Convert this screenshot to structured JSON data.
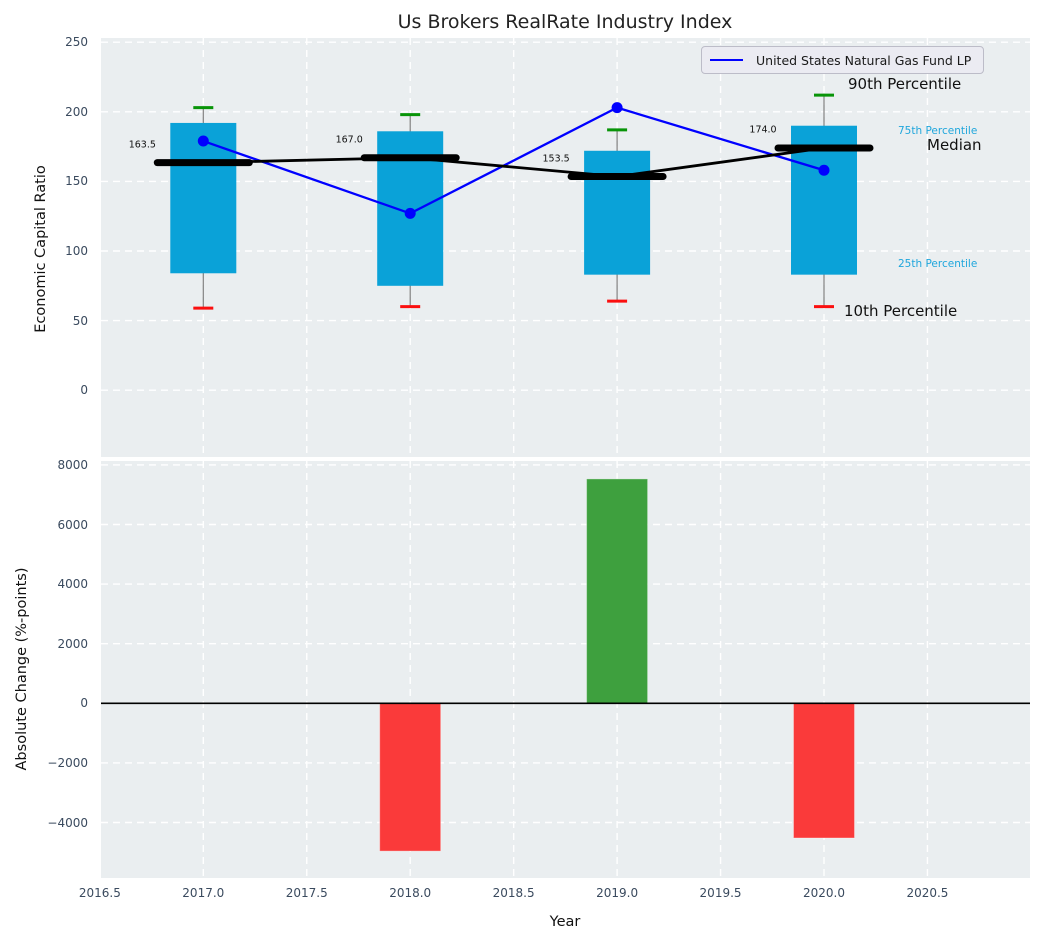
{
  "title": "Us Brokers RealRate Industry Index",
  "legend": {
    "label": "United States Natural Gas Fund LP"
  },
  "labels": {
    "p90": "90th Percentile",
    "p75": "75th Percentile",
    "median": "Median",
    "p25": "25th Percentile",
    "p10": "10th Percentile"
  },
  "colors": {
    "axes_bg": "#eaeef0",
    "grid": "#ffffff",
    "tick": "#3a4a5e",
    "box": "#0aa2d8",
    "cyan_label": "#1fa6dc",
    "whisker": "#808080",
    "cap_high": "#089408",
    "cap_low": "#fb0f0f",
    "median_line": "#000000",
    "fund_line": "#0000ff",
    "bar_up": "#3ea03e",
    "bar_down": "#fa3a3a",
    "zero_line": "#000000"
  },
  "chart_data": [
    {
      "type": "boxplot+line",
      "title": "Us Brokers RealRate Industry Index",
      "ylabel": "Economic Capital Ratio",
      "grid": true,
      "legend_position": "upper right",
      "xlim": [
        2016.5,
        2021.0
      ],
      "ylim": [
        -48,
        253
      ],
      "years": [
        2017,
        2018,
        2019,
        2020
      ],
      "boxes": [
        {
          "year": 2017,
          "p10": 59,
          "p25": 84,
          "median": 163.5,
          "p75": 192,
          "p90": 203,
          "median_label": "163.5"
        },
        {
          "year": 2018,
          "p10": 60,
          "p25": 75,
          "median": 167.0,
          "p75": 186,
          "p90": 198,
          "median_label": "167.0"
        },
        {
          "year": 2019,
          "p10": 64,
          "p25": 83,
          "median": 153.5,
          "p75": 172,
          "p90": 187,
          "median_label": "153.5"
        },
        {
          "year": 2020,
          "p10": 60,
          "p25": 83,
          "median": 174.0,
          "p75": 190,
          "p90": 212,
          "median_label": "174.0"
        }
      ],
      "series": [
        {
          "name": "United States Natural Gas Fund LP",
          "type": "line",
          "color": "#0000ff",
          "values": [
            179,
            127,
            203,
            158
          ]
        },
        {
          "name": "Median",
          "type": "line",
          "color": "#000000",
          "values": [
            163.5,
            167.0,
            153.5,
            174.0
          ]
        }
      ],
      "yticks": [
        {
          "v": 0,
          "label": "0"
        },
        {
          "v": 50,
          "label": "50"
        },
        {
          "v": 100,
          "label": "100"
        },
        {
          "v": 150,
          "label": "150"
        },
        {
          "v": 200,
          "label": "200"
        },
        {
          "v": 250,
          "label": "250"
        }
      ]
    },
    {
      "type": "bar",
      "ylabel": "Absolute Change (%-points)",
      "xlabel": "Year",
      "grid": true,
      "xlim": [
        2016.5,
        2021.0
      ],
      "ylim": [
        -5870,
        8150
      ],
      "x": [
        2018,
        2019,
        2020
      ],
      "values": [
        -4960,
        7530,
        -4520
      ],
      "bar_colors": [
        "#fa3a3a",
        "#3ea03e",
        "#fa3a3a"
      ],
      "yticks": [
        {
          "v": 8000,
          "label": "8000"
        },
        {
          "v": 6000,
          "label": "6000"
        },
        {
          "v": 4000,
          "label": "4000"
        },
        {
          "v": 2000,
          "label": "2000"
        },
        {
          "v": 0,
          "label": "0"
        },
        {
          "v": -2000,
          "label": "−2000"
        },
        {
          "v": -4000,
          "label": "−4000"
        }
      ],
      "xticks": [
        {
          "v": 2016.5,
          "label": "2016.5"
        },
        {
          "v": 2017.0,
          "label": "2017.0"
        },
        {
          "v": 2017.5,
          "label": "2017.5"
        },
        {
          "v": 2018.0,
          "label": "2018.0"
        },
        {
          "v": 2018.5,
          "label": "2018.5"
        },
        {
          "v": 2019.0,
          "label": "2019.0"
        },
        {
          "v": 2019.5,
          "label": "2019.5"
        },
        {
          "v": 2020.0,
          "label": "2020.0"
        },
        {
          "v": 2020.5,
          "label": "2020.5"
        }
      ]
    }
  ]
}
